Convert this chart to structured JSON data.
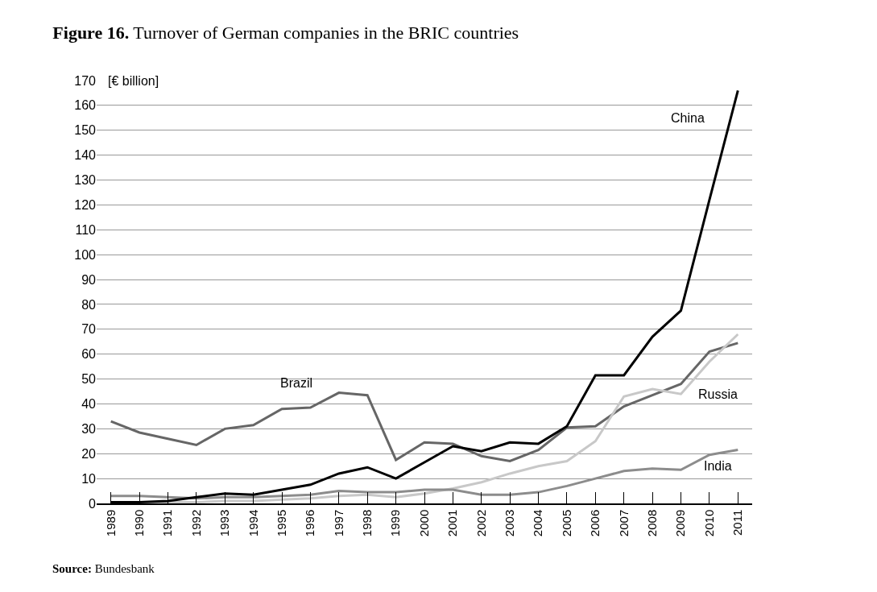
{
  "chart_data": {
    "type": "line",
    "title": "Figure 16. Turnover of German companies in the BRIC countries",
    "ylabel": "[€ billion]",
    "categories": [
      "1989",
      "1990",
      "1991",
      "1992",
      "1993",
      "1994",
      "1995",
      "1996",
      "1997",
      "1998",
      "1999",
      "2000",
      "2001",
      "2002",
      "2003",
      "2004",
      "2005",
      "2006",
      "2007",
      "2008",
      "2009",
      "2010",
      "2011"
    ],
    "series": [
      {
        "name": "Brazil",
        "color": "#666666",
        "values": [
          33,
          28.5,
          26,
          23.5,
          30,
          31.5,
          38,
          38.5,
          44.5,
          43.5,
          17.5,
          24.5,
          24,
          19,
          17,
          21.5,
          30.5,
          31,
          39,
          43.5,
          48,
          61,
          64.5
        ]
      },
      {
        "name": "Russia",
        "color": "#c8c8c8",
        "values": [
          null,
          0.5,
          0.5,
          0.5,
          1,
          1,
          1.5,
          2,
          3,
          3.5,
          2.5,
          4,
          6,
          8.5,
          12,
          15,
          17,
          25,
          43,
          46,
          44,
          57,
          68
        ]
      },
      {
        "name": "India",
        "color": "#8c8c8c",
        "values": [
          3,
          3,
          2.5,
          2,
          2.5,
          2.5,
          3,
          3.5,
          5,
          4.5,
          4.5,
          5.5,
          5.5,
          3.5,
          3.5,
          4.5,
          7,
          10,
          13,
          14,
          13.5,
          19.5,
          21.5
        ]
      },
      {
        "name": "China",
        "color": "#000000",
        "values": [
          0.5,
          0.5,
          1,
          2.5,
          4,
          3.5,
          5.5,
          7.5,
          12,
          14.5,
          10,
          16.5,
          23,
          21,
          24.5,
          24,
          31,
          51.5,
          51.5,
          67,
          77.5,
          122,
          166
        ]
      }
    ],
    "ylim": [
      0,
      170
    ],
    "yticks": [
      0,
      10,
      20,
      30,
      40,
      50,
      60,
      70,
      80,
      90,
      100,
      110,
      120,
      130,
      140,
      150,
      160,
      170
    ],
    "grid": "y",
    "legend": false,
    "marker": "none",
    "line_style": "solid",
    "annotations": [
      "Source: Bundesbank"
    ]
  }
}
